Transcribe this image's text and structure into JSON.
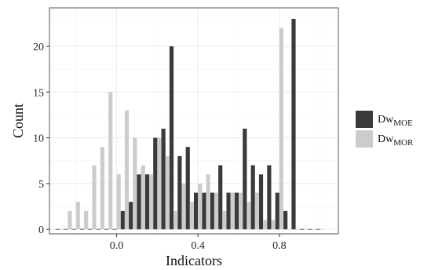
{
  "chart_data": {
    "type": "bar",
    "title": "",
    "xlabel": "Indicators",
    "ylabel": "Count",
    "xlim": [
      -0.33,
      1.09
    ],
    "ylim": [
      -0.5,
      24.2
    ],
    "bin_width": 0.04,
    "x_ticks": [
      0.0,
      0.4,
      0.8
    ],
    "x_tick_labels": [
      "0.0",
      "0.4",
      "0.8"
    ],
    "y_ticks": [
      0,
      5,
      10,
      15,
      20
    ],
    "y_tick_labels": [
      "0",
      "5",
      "10",
      "15",
      "20"
    ],
    "grid": true,
    "legend_position": "right",
    "bin_centers": [
      -0.28,
      -0.24,
      -0.2,
      -0.16,
      -0.12,
      -0.08,
      -0.04,
      0.0,
      0.04,
      0.08,
      0.12,
      0.16,
      0.2,
      0.24,
      0.28,
      0.32,
      0.36,
      0.4,
      0.44,
      0.48,
      0.52,
      0.56,
      0.6,
      0.64,
      0.68,
      0.72,
      0.76,
      0.8,
      0.84,
      0.88,
      0.92,
      0.96,
      1.0
    ],
    "series": [
      {
        "name_main": "Dw",
        "name_sub": "MOE",
        "color": "#3a3a3a",
        "values": [
          0,
          0,
          0,
          0,
          0,
          0,
          0,
          0,
          2,
          3,
          6,
          6,
          10,
          11,
          20,
          8,
          9,
          4,
          4,
          4,
          7,
          4,
          4,
          11,
          7,
          6,
          7,
          4,
          2,
          23,
          0,
          0,
          0
        ]
      },
      {
        "name_main": "Dw",
        "name_sub": "MOR",
        "color": "#cccccc",
        "values": [
          0,
          2,
          3,
          2,
          7,
          9,
          15,
          6,
          13,
          10,
          7,
          6,
          10,
          8,
          2,
          5,
          3,
          5,
          6,
          4,
          2,
          4,
          4,
          3,
          4,
          1,
          1,
          22,
          0,
          0,
          0,
          0,
          0
        ]
      }
    ]
  },
  "colors": {
    "panel_border": "#555555",
    "grid_major": "#ebebeb",
    "grid_minor": "#f5f5f5"
  }
}
